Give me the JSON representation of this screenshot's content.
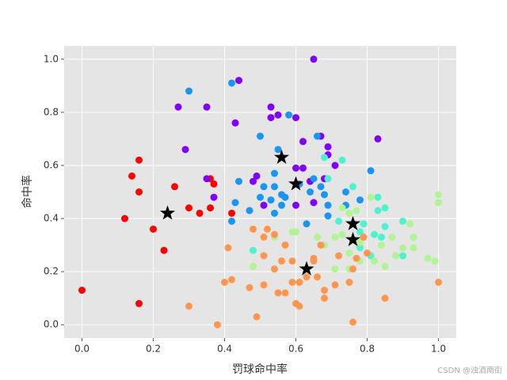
{
  "chart_data": {
    "type": "scatter",
    "xlabel": "罚球命中率",
    "ylabel": "命中率",
    "watermark": "CSDN @浊酒南街",
    "xlim": [
      -0.05,
      1.05
    ],
    "ylim": [
      -0.05,
      1.05
    ],
    "grid": true,
    "background": "#e5e5e5",
    "xticks": [
      {
        "value": 0,
        "label": "0.0"
      },
      {
        "value": 0.2,
        "label": "0.2"
      },
      {
        "value": 0.4,
        "label": "0.4"
      },
      {
        "value": 0.6,
        "label": "0.6"
      },
      {
        "value": 0.8,
        "label": "0.8"
      },
      {
        "value": 1,
        "label": "1.0"
      }
    ],
    "yticks": [
      {
        "value": 0,
        "label": "0.0"
      },
      {
        "value": 0.2,
        "label": "0.2"
      },
      {
        "value": 0.4,
        "label": "0.4"
      },
      {
        "value": 0.6,
        "label": "0.6"
      },
      {
        "value": 0.8,
        "label": "0.8"
      },
      {
        "value": 1,
        "label": "1.0"
      }
    ],
    "series": [
      {
        "color": "#ff0000",
        "marker": "circle",
        "x": [
          0.0,
          0.16,
          0.16,
          0.14,
          0.16,
          0.12,
          0.2,
          0.23,
          0.26,
          0.3,
          0.33,
          0.36,
          0.36,
          0.37,
          0.42
        ],
        "values": [
          0.13,
          0.08,
          0.62,
          0.56,
          0.5,
          0.4,
          0.36,
          0.28,
          0.52,
          0.44,
          0.42,
          0.44,
          0.55,
          0.53,
          0.42
        ]
      },
      {
        "color": "#8000ff",
        "marker": "circle",
        "x": [
          0.27,
          0.35,
          0.29,
          0.44,
          0.43,
          0.35,
          0.37,
          0.53,
          0.53,
          0.55,
          0.6,
          0.62,
          0.67,
          0.69,
          0.69,
          0.71,
          0.83,
          0.65,
          0.49,
          0.48,
          0.51,
          0.6,
          0.62,
          0.64,
          0.65,
          0.68,
          0.6
        ],
        "values": [
          0.82,
          0.82,
          0.66,
          0.92,
          0.76,
          0.55,
          0.48,
          0.82,
          0.78,
          0.79,
          0.78,
          0.69,
          0.71,
          0.67,
          0.64,
          0.6,
          0.7,
          1.0,
          0.56,
          0.54,
          0.45,
          0.59,
          0.59,
          0.54,
          0.46,
          0.55,
          0.45
        ]
      },
      {
        "color": "#1996f3",
        "marker": "circle",
        "x": [
          0.3,
          0.42,
          0.5,
          0.55,
          0.54,
          0.54,
          0.51,
          0.5,
          0.53,
          0.56,
          0.57,
          0.54,
          0.56,
          0.44,
          0.43,
          0.47,
          0.42,
          0.61,
          0.64,
          0.65,
          0.66,
          0.68,
          0.69,
          0.69,
          0.74,
          0.74,
          0.78,
          0.81,
          0.63,
          0.67,
          0.58
        ],
        "values": [
          0.88,
          0.91,
          0.71,
          0.66,
          0.57,
          0.52,
          0.52,
          0.48,
          0.47,
          0.49,
          0.48,
          0.42,
          0.45,
          0.54,
          0.46,
          0.43,
          0.39,
          0.53,
          0.5,
          0.55,
          0.71,
          0.49,
          0.45,
          0.41,
          0.5,
          0.45,
          0.47,
          0.58,
          0.38,
          0.52,
          0.79
        ]
      },
      {
        "color": "#4df3ce",
        "marker": "circle",
        "x": [
          0.68,
          0.73,
          0.76,
          0.83,
          0.83,
          0.85,
          0.9,
          0.85,
          0.82,
          0.78,
          0.84,
          0.78,
          0.81,
          0.9,
          0.48,
          0.69,
          0.72,
          0.79
        ],
        "values": [
          0.63,
          0.62,
          0.52,
          0.48,
          0.43,
          0.44,
          0.39,
          0.37,
          0.34,
          0.35,
          0.33,
          0.29,
          0.26,
          0.26,
          0.28,
          0.55,
          0.39,
          0.38
        ]
      },
      {
        "color": "#b2f396",
        "marker": "circle",
        "x": [
          1.0,
          1.0,
          0.92,
          0.87,
          0.93,
          0.93,
          0.9,
          0.99,
          0.97,
          0.88,
          0.85,
          0.82,
          0.78,
          0.75,
          0.73,
          0.71,
          0.68,
          0.66,
          0.75,
          0.77,
          0.81,
          0.6,
          0.59,
          0.71,
          0.75,
          0.78,
          0.48,
          0.54,
          0.73,
          0.84
        ],
        "values": [
          0.49,
          0.46,
          0.38,
          0.33,
          0.33,
          0.29,
          0.29,
          0.24,
          0.25,
          0.26,
          0.22,
          0.24,
          0.24,
          0.27,
          0.34,
          0.33,
          0.3,
          0.33,
          0.42,
          0.43,
          0.48,
          0.35,
          0.35,
          0.21,
          0.21,
          0.31,
          0.22,
          0.33,
          0.44,
          0.3
        ]
      },
      {
        "color": "#ff964f",
        "marker": "circle",
        "x": [
          1.0,
          0.85,
          0.76,
          0.38,
          0.3,
          0.49,
          0.4,
          0.42,
          0.41,
          0.47,
          0.51,
          0.48,
          0.51,
          0.52,
          0.54,
          0.54,
          0.56,
          0.57,
          0.55,
          0.57,
          0.59,
          0.61,
          0.6,
          0.61,
          0.63,
          0.65,
          0.67,
          0.66,
          0.68,
          0.68,
          0.71,
          0.75,
          0.76,
          0.77,
          0.79,
          0.8,
          0.51,
          0.59,
          0.65,
          0.72
        ],
        "values": [
          0.16,
          0.1,
          0.01,
          0.0,
          0.07,
          0.03,
          0.16,
          0.17,
          0.29,
          0.14,
          0.15,
          0.36,
          0.33,
          0.36,
          0.34,
          0.21,
          0.24,
          0.3,
          0.12,
          0.12,
          0.16,
          0.16,
          0.08,
          0.07,
          0.18,
          0.24,
          0.3,
          0.18,
          0.13,
          0.1,
          0.15,
          0.16,
          0.21,
          0.25,
          0.33,
          0.27,
          0.26,
          0.24,
          0.25,
          0.26
        ]
      },
      {
        "color": "#000000",
        "marker": "star",
        "x": [
          0.24,
          0.56,
          0.6,
          0.76,
          0.76,
          0.63
        ],
        "values": [
          0.42,
          0.63,
          0.53,
          0.38,
          0.32,
          0.21
        ]
      }
    ]
  }
}
